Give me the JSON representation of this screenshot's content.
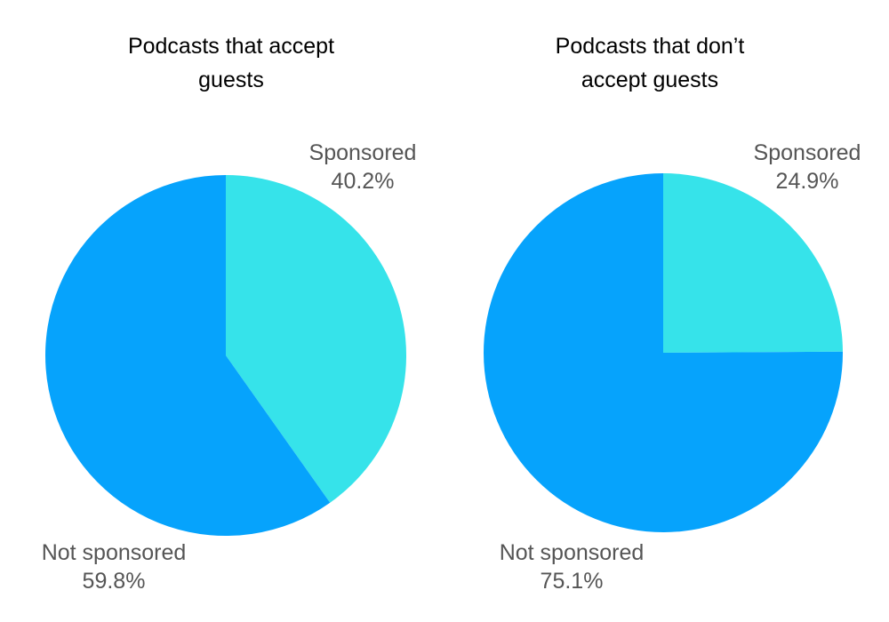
{
  "chart_data": [
    {
      "type": "pie",
      "title_lines": [
        "Podcasts that accept",
        "guests"
      ],
      "slices": [
        {
          "label": "Sponsored",
          "value": 40.2,
          "value_label": "40.2%",
          "color": "#36E3EA"
        },
        {
          "label": "Not sponsored",
          "value": 59.8,
          "value_label": "59.8%",
          "color": "#06A3FC"
        }
      ]
    },
    {
      "type": "pie",
      "title_lines": [
        "Podcasts that don’t",
        "accept guests"
      ],
      "slices": [
        {
          "label": "Sponsored",
          "value": 24.9,
          "value_label": "24.9%",
          "color": "#36E3EA"
        },
        {
          "label": "Not sponsored",
          "value": 75.1,
          "value_label": "75.1%",
          "color": "#06A3FC"
        }
      ]
    }
  ]
}
